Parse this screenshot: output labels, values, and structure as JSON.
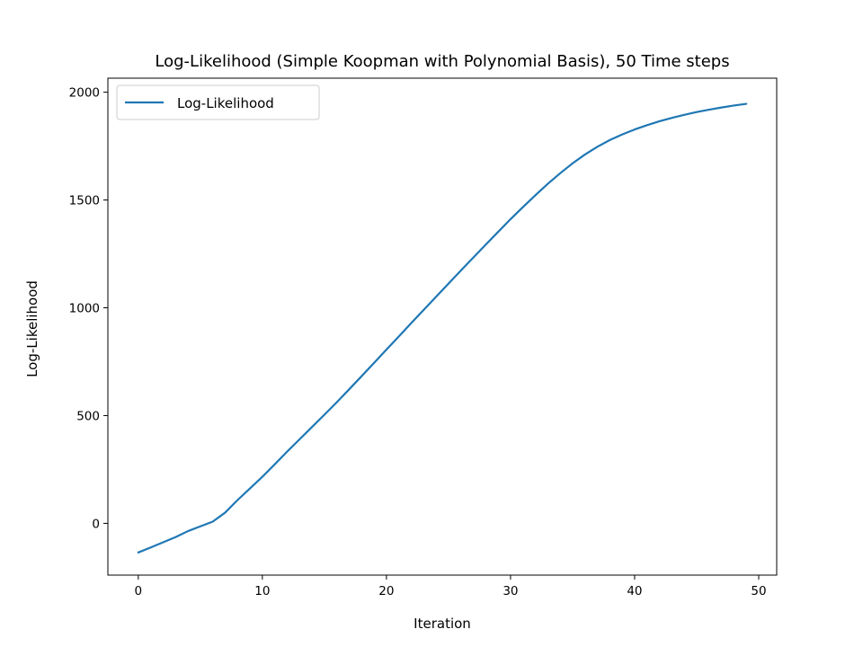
{
  "chart_data": {
    "type": "line",
    "title": "Log-Likelihood (Simple Koopman with Polynomial Basis), 50 Time steps",
    "xlabel": "Iteration",
    "ylabel": "Log-Likelihood",
    "xlim": [
      -2.45,
      51.45
    ],
    "ylim": [
      -240,
      2065
    ],
    "xticks": [
      0,
      10,
      20,
      30,
      40,
      50
    ],
    "yticks": [
      0,
      500,
      1000,
      1500,
      2000
    ],
    "grid": false,
    "legend_position": "top-left",
    "series": [
      {
        "name": "Log-Likelihood",
        "color": "#1f77b4",
        "x": [
          0,
          1,
          2,
          3,
          4,
          5,
          6,
          7,
          8,
          9,
          10,
          11,
          12,
          13,
          14,
          15,
          16,
          17,
          18,
          19,
          20,
          21,
          22,
          23,
          24,
          25,
          26,
          27,
          28,
          29,
          30,
          31,
          32,
          33,
          34,
          35,
          36,
          37,
          38,
          39,
          40,
          41,
          42,
          43,
          44,
          45,
          46,
          47,
          48,
          49
        ],
        "y": [
          -135,
          -112,
          -88,
          -64,
          -36,
          -14,
          8,
          50,
          108,
          162,
          216,
          274,
          333,
          390,
          447,
          504,
          562,
          622,
          683,
          744,
          806,
          867,
          929,
          990,
          1051,
          1112,
          1173,
          1233,
          1293,
          1352,
          1411,
          1467,
          1522,
          1575,
          1624,
          1670,
          1711,
          1747,
          1778,
          1804,
          1827,
          1847,
          1865,
          1881,
          1895,
          1908,
          1919,
          1929,
          1938,
          1946
        ]
      }
    ]
  }
}
